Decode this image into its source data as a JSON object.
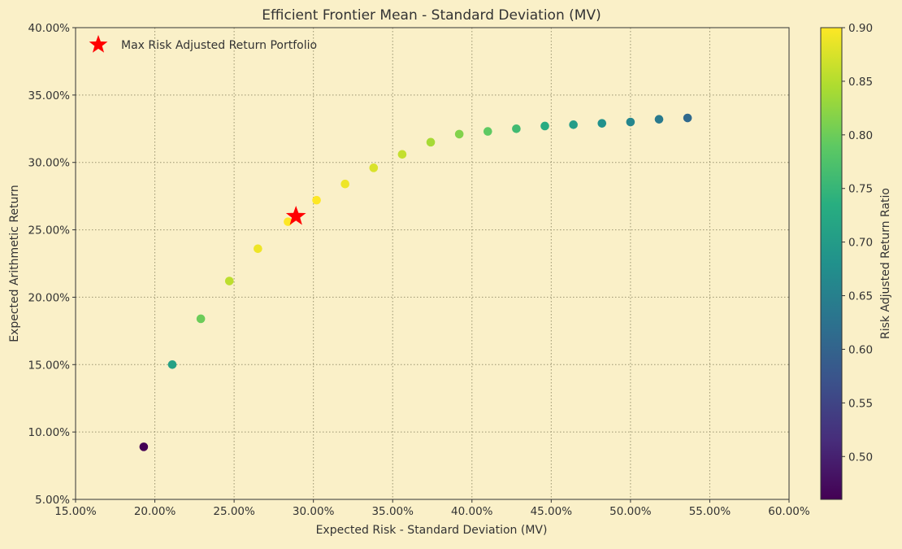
{
  "chart_data": {
    "type": "scatter",
    "title": "Efficient Frontier Mean - Standard Deviation (MV)",
    "xlabel": "Expected Risk - Standard Deviation (MV)",
    "ylabel": "Expected Arithmetic Return",
    "xlim": [
      0.15,
      0.6
    ],
    "ylim": [
      0.05,
      0.4
    ],
    "x_ticks": [
      {
        "value": 0.15,
        "label": "15.00%"
      },
      {
        "value": 0.2,
        "label": "20.00%"
      },
      {
        "value": 0.25,
        "label": "25.00%"
      },
      {
        "value": 0.3,
        "label": "30.00%"
      },
      {
        "value": 0.35,
        "label": "35.00%"
      },
      {
        "value": 0.4,
        "label": "40.00%"
      },
      {
        "value": 0.45,
        "label": "45.00%"
      },
      {
        "value": 0.5,
        "label": "50.00%"
      },
      {
        "value": 0.55,
        "label": "55.00%"
      },
      {
        "value": 0.6,
        "label": "60.00%"
      }
    ],
    "y_ticks": [
      {
        "value": 0.05,
        "label": "5.00%"
      },
      {
        "value": 0.1,
        "label": "10.00%"
      },
      {
        "value": 0.15,
        "label": "15.00%"
      },
      {
        "value": 0.2,
        "label": "20.00%"
      },
      {
        "value": 0.25,
        "label": "25.00%"
      },
      {
        "value": 0.3,
        "label": "30.00%"
      },
      {
        "value": 0.35,
        "label": "35.00%"
      },
      {
        "value": 0.4,
        "label": "40.00%"
      }
    ],
    "grid": true,
    "legend": {
      "placement": "top-left",
      "label": "Max Risk Adjusted Return Portfolio",
      "marker": "star",
      "color": "#ff0000"
    },
    "colorbar": {
      "label": "Risk Adjusted Return Ratio",
      "colormap": "viridis",
      "range": [
        0.46,
        0.9
      ],
      "ticks": [
        {
          "value": 0.5,
          "label": "0.50"
        },
        {
          "value": 0.55,
          "label": "0.55"
        },
        {
          "value": 0.6,
          "label": "0.60"
        },
        {
          "value": 0.65,
          "label": "0.65"
        },
        {
          "value": 0.7,
          "label": "0.70"
        },
        {
          "value": 0.75,
          "label": "0.75"
        },
        {
          "value": 0.8,
          "label": "0.80"
        },
        {
          "value": 0.85,
          "label": "0.85"
        },
        {
          "value": 0.9,
          "label": "0.90"
        }
      ]
    },
    "points": [
      {
        "x": 0.193,
        "y": 0.089,
        "ratio": 0.46
      },
      {
        "x": 0.211,
        "y": 0.15,
        "ratio": 0.71
      },
      {
        "x": 0.229,
        "y": 0.184,
        "ratio": 0.8
      },
      {
        "x": 0.247,
        "y": 0.212,
        "ratio": 0.855
      },
      {
        "x": 0.265,
        "y": 0.236,
        "ratio": 0.89
      },
      {
        "x": 0.284,
        "y": 0.256,
        "ratio": 0.9
      },
      {
        "x": 0.302,
        "y": 0.272,
        "ratio": 0.9
      },
      {
        "x": 0.32,
        "y": 0.284,
        "ratio": 0.89
      },
      {
        "x": 0.338,
        "y": 0.296,
        "ratio": 0.875
      },
      {
        "x": 0.356,
        "y": 0.306,
        "ratio": 0.86
      },
      {
        "x": 0.374,
        "y": 0.315,
        "ratio": 0.84
      },
      {
        "x": 0.392,
        "y": 0.321,
        "ratio": 0.815
      },
      {
        "x": 0.41,
        "y": 0.323,
        "ratio": 0.79
      },
      {
        "x": 0.428,
        "y": 0.325,
        "ratio": 0.76
      },
      {
        "x": 0.446,
        "y": 0.327,
        "ratio": 0.73
      },
      {
        "x": 0.464,
        "y": 0.328,
        "ratio": 0.7
      },
      {
        "x": 0.482,
        "y": 0.329,
        "ratio": 0.68
      },
      {
        "x": 0.5,
        "y": 0.33,
        "ratio": 0.66
      },
      {
        "x": 0.518,
        "y": 0.332,
        "ratio": 0.64
      },
      {
        "x": 0.536,
        "y": 0.333,
        "ratio": 0.61
      }
    ],
    "max_portfolio": {
      "x": 0.289,
      "y": 0.26,
      "color": "#ff0000"
    }
  }
}
